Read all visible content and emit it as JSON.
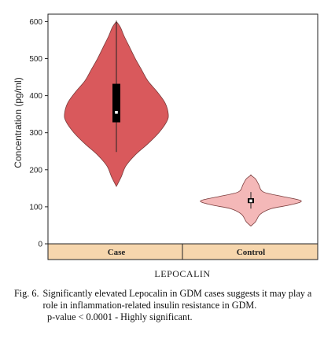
{
  "chart_data": {
    "type": "violin",
    "ylabel": "Concentration (pg/ml)",
    "xlabel": "LEPOCALIN",
    "ylim": [
      0,
      620
    ],
    "yticks": [
      0,
      100,
      200,
      300,
      400,
      500,
      600
    ],
    "categories": [
      "Case",
      "Control"
    ],
    "groups": [
      {
        "category": "Case",
        "color": "#d9595c",
        "min": 155,
        "max": 600,
        "q1": 328,
        "q3": 432,
        "median": 355,
        "whisker_low": 248,
        "whisker_high": 600,
        "density": [
          [
            155,
            0
          ],
          [
            180,
            6
          ],
          [
            210,
            12
          ],
          [
            240,
            24
          ],
          [
            270,
            40
          ],
          [
            300,
            54
          ],
          [
            330,
            64
          ],
          [
            350,
            66
          ],
          [
            380,
            62
          ],
          [
            410,
            52
          ],
          [
            440,
            40
          ],
          [
            470,
            32
          ],
          [
            500,
            24
          ],
          [
            530,
            17
          ],
          [
            560,
            10
          ],
          [
            585,
            5
          ],
          [
            600,
            0
          ]
        ]
      },
      {
        "category": "Control",
        "color": "#f4b8b8",
        "min": 48,
        "max": 185,
        "q1": 110,
        "q3": 123,
        "median": 116,
        "whisker_low": 95,
        "whisker_high": 140,
        "density": [
          [
            48,
            0
          ],
          [
            60,
            6
          ],
          [
            80,
            12
          ],
          [
            95,
            26
          ],
          [
            105,
            50
          ],
          [
            116,
            64
          ],
          [
            128,
            40
          ],
          [
            140,
            16
          ],
          [
            160,
            10
          ],
          [
            175,
            6
          ],
          [
            185,
            0
          ]
        ]
      }
    ]
  },
  "caption": {
    "fig_label": "Fig. 6.",
    "text": "Significantly elevated Lepocalin in GDM cases suggests it may play a role in inflammation-related insulin resistance in  GDM.",
    "pvalue": "p-value < 0.0001 - Highly significant."
  }
}
